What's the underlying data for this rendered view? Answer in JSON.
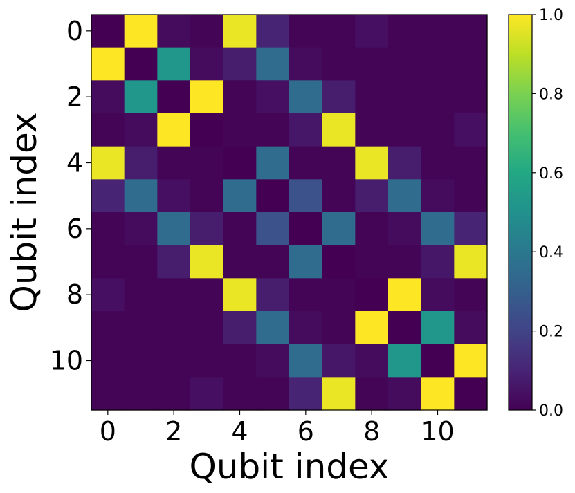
{
  "chart_data": {
    "type": "heatmap",
    "xlabel": "Qubit index",
    "ylabel": "Qubit index",
    "x_ticks": [
      0,
      2,
      4,
      6,
      8,
      10
    ],
    "y_ticks": [
      0,
      2,
      4,
      6,
      8,
      10
    ],
    "colormap": "viridis",
    "colorbar": {
      "range": [
        0.0,
        1.0
      ],
      "ticks": [
        "0.0",
        "0.2",
        "0.4",
        "0.6",
        "0.8",
        "1.0"
      ]
    },
    "matrix": [
      [
        0.0,
        1.0,
        0.03,
        0.01,
        0.97,
        0.1,
        0.01,
        0.01,
        0.04,
        0.01,
        0.01,
        0.01
      ],
      [
        1.0,
        0.0,
        0.52,
        0.03,
        0.08,
        0.35,
        0.03,
        0.01,
        0.01,
        0.01,
        0.01,
        0.01
      ],
      [
        0.03,
        0.52,
        0.0,
        1.0,
        0.01,
        0.04,
        0.35,
        0.08,
        0.01,
        0.01,
        0.01,
        0.01
      ],
      [
        0.01,
        0.03,
        1.0,
        0.0,
        0.01,
        0.01,
        0.06,
        0.97,
        0.01,
        0.01,
        0.01,
        0.04
      ],
      [
        0.97,
        0.08,
        0.01,
        0.01,
        0.0,
        0.35,
        0.01,
        0.01,
        0.97,
        0.08,
        0.01,
        0.01
      ],
      [
        0.1,
        0.35,
        0.04,
        0.01,
        0.35,
        0.0,
        0.25,
        0.01,
        0.08,
        0.35,
        0.03,
        0.01
      ],
      [
        0.01,
        0.03,
        0.35,
        0.08,
        0.01,
        0.25,
        0.0,
        0.35,
        0.01,
        0.03,
        0.35,
        0.1
      ],
      [
        0.01,
        0.01,
        0.08,
        0.97,
        0.01,
        0.01,
        0.35,
        0.0,
        0.01,
        0.01,
        0.06,
        0.97
      ],
      [
        0.04,
        0.01,
        0.01,
        0.01,
        0.97,
        0.08,
        0.01,
        0.01,
        0.0,
        1.0,
        0.03,
        0.01
      ],
      [
        0.01,
        0.01,
        0.01,
        0.01,
        0.08,
        0.35,
        0.03,
        0.01,
        1.0,
        0.0,
        0.52,
        0.03
      ],
      [
        0.01,
        0.01,
        0.01,
        0.01,
        0.01,
        0.03,
        0.35,
        0.06,
        0.03,
        0.52,
        0.0,
        1.0
      ],
      [
        0.01,
        0.01,
        0.01,
        0.04,
        0.01,
        0.01,
        0.1,
        0.97,
        0.01,
        0.03,
        1.0,
        0.0
      ]
    ]
  }
}
